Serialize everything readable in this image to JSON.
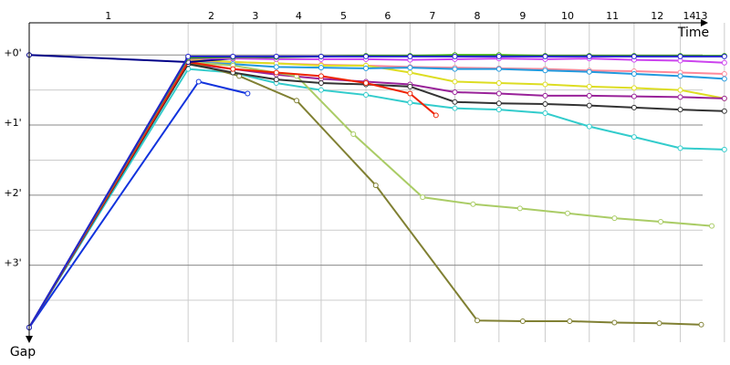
{
  "chart_data": {
    "type": "line",
    "x_label": "Time",
    "y_label": "Gap",
    "xlim": [
      0,
      10.01
    ],
    "ylim": [
      -0.46,
      4.1
    ],
    "xticks": [
      {
        "value": 1.13,
        "label": "1"
      },
      {
        "value": 2.6,
        "label": "2"
      },
      {
        "value": 3.23,
        "label": "3"
      },
      {
        "value": 3.85,
        "label": "4"
      },
      {
        "value": 4.49,
        "label": "5"
      },
      {
        "value": 5.12,
        "label": "6"
      },
      {
        "value": 5.76,
        "label": "7"
      },
      {
        "value": 6.4,
        "label": "8"
      },
      {
        "value": 7.05,
        "label": "9"
      },
      {
        "value": 7.69,
        "label": "10"
      },
      {
        "value": 8.33,
        "label": "11"
      },
      {
        "value": 8.97,
        "label": "12"
      },
      {
        "value": 9.43,
        "label": "14"
      },
      {
        "value": 9.6,
        "label": "13"
      }
    ],
    "xgrid": [
      2.27,
      2.91,
      3.53,
      4.17,
      4.81,
      5.44,
      6.08,
      6.71,
      7.37,
      8.0,
      8.64,
      9.3,
      9.93
    ],
    "yticks": [
      {
        "value": 0,
        "label": "+0'"
      },
      {
        "value": 1,
        "label": "+1'"
      },
      {
        "value": 2,
        "label": "+2'"
      },
      {
        "value": 3,
        "label": "+3'"
      }
    ],
    "ygrid": [
      0,
      0.5,
      1,
      1.5,
      2,
      2.5,
      3,
      3.5
    ],
    "series": [
      {
        "color": "#ff8899",
        "x": [
          0,
          2.27,
          2.91,
          3.53,
          4.17,
          4.81,
          5.44,
          6.08,
          6.71,
          7.37,
          8.0,
          8.64,
          9.3,
          9.93
        ],
        "values": [
          3.89,
          0.08,
          0.1,
          0.12,
          0.14,
          0.15,
          0.17,
          0.18,
          0.19,
          0.2,
          0.22,
          0.23,
          0.25,
          0.27
        ]
      },
      {
        "color": "#dddd22",
        "x": [
          0,
          2.27,
          2.91,
          3.53,
          4.17,
          4.81,
          5.44,
          6.08,
          6.71,
          7.37,
          8.0,
          8.64,
          9.3,
          9.93
        ],
        "values": [
          3.89,
          0.06,
          0.1,
          0.12,
          0.15,
          0.15,
          0.25,
          0.38,
          0.4,
          0.42,
          0.45,
          0.47,
          0.5,
          0.62
        ]
      },
      {
        "color": "#992299",
        "x": [
          0,
          2.27,
          2.91,
          3.53,
          4.17,
          4.81,
          5.44,
          6.08,
          6.71,
          7.37,
          8.0,
          8.64,
          9.3,
          9.93
        ],
        "values": [
          3.89,
          0.12,
          0.2,
          0.28,
          0.34,
          0.38,
          0.42,
          0.53,
          0.55,
          0.58,
          0.58,
          0.59,
          0.6,
          0.62
        ]
      },
      {
        "color": "#2299dd",
        "x": [
          0,
          2.27,
          2.91,
          3.53,
          4.17,
          4.81,
          5.44,
          6.08,
          6.71,
          7.37,
          8.0,
          8.64,
          9.3,
          9.93
        ],
        "values": [
          3.89,
          0.1,
          0.13,
          0.17,
          0.18,
          0.19,
          0.18,
          0.2,
          0.2,
          0.22,
          0.24,
          0.27,
          0.3,
          0.34
        ]
      },
      {
        "color": "#33cccc",
        "x": [
          0,
          2.27,
          2.91,
          3.53,
          4.17,
          4.81,
          5.44,
          6.08,
          6.71,
          7.37,
          8.0,
          8.64,
          9.3,
          9.93
        ],
        "values": [
          3.89,
          0.2,
          0.25,
          0.4,
          0.5,
          0.57,
          0.68,
          0.76,
          0.78,
          0.83,
          1.02,
          1.17,
          1.33,
          1.35
        ]
      },
      {
        "color": "#aacc66",
        "x": [
          0,
          2.27,
          2.91,
          3.82,
          4.63,
          5.62,
          6.34,
          7.01,
          7.69,
          8.36,
          9.02,
          9.75
        ],
        "values": [
          3.89,
          0.1,
          0.15,
          0.3,
          1.13,
          2.03,
          2.13,
          2.19,
          2.26,
          2.33,
          2.38,
          2.44
        ]
      },
      {
        "color": "#808033",
        "x": [
          0,
          2.27,
          3.0,
          3.82,
          4.95,
          6.4,
          7.05,
          7.72,
          8.36,
          9.0,
          9.6
        ],
        "values": [
          3.89,
          0.1,
          0.3,
          0.65,
          1.86,
          3.79,
          3.8,
          3.8,
          3.82,
          3.83,
          3.85
        ]
      },
      {
        "color": "#333333",
        "x": [
          0,
          2.27,
          2.91,
          3.53,
          4.17,
          4.81,
          5.44,
          6.08,
          6.71,
          7.37,
          8.0,
          8.64,
          9.3,
          9.93
        ],
        "values": [
          3.89,
          0.13,
          0.25,
          0.35,
          0.4,
          0.42,
          0.45,
          0.67,
          0.69,
          0.7,
          0.72,
          0.75,
          0.78,
          0.8
        ]
      },
      {
        "color": "#ee2200",
        "x": [
          0,
          2.27,
          2.91,
          3.53,
          4.17,
          4.81,
          5.44,
          5.81
        ],
        "values": [
          3.89,
          0.1,
          0.2,
          0.25,
          0.3,
          0.4,
          0.55,
          0.86
        ]
      },
      {
        "color": "#1133dd",
        "x": [
          0,
          2.42,
          3.12
        ],
        "values": [
          3.89,
          0.38,
          0.55
        ]
      },
      {
        "color": "#000088",
        "x": [
          0,
          2.27,
          2.91,
          3.53
        ],
        "values": [
          0,
          0.1,
          0.05,
          0.03
        ]
      },
      {
        "color": "#cc44ee",
        "x": [
          0,
          2.27,
          2.91,
          3.53,
          4.17,
          4.81,
          5.44,
          6.08,
          6.71,
          7.37,
          8.0,
          8.64,
          9.3,
          9.93
        ],
        "values": [
          3.89,
          0.05,
          0.05,
          0.06,
          0.06,
          0.06,
          0.07,
          0.06,
          0.05,
          0.06,
          0.05,
          0.07,
          0.08,
          0.11
        ]
      },
      {
        "color": "#33aa00",
        "x": [
          0,
          2.27,
          2.91,
          3.53,
          4.17,
          4.81,
          5.44,
          6.08,
          6.71,
          7.37,
          8.0,
          8.64,
          9.3,
          9.93
        ],
        "values": [
          3.89,
          0.04,
          0.03,
          0.03,
          0.02,
          0.01,
          0.01,
          0,
          0,
          0.01,
          0.01,
          0.01,
          0.01,
          0.01
        ]
      },
      {
        "color": "#2222cc",
        "x": [
          0,
          2.27,
          2.91,
          3.53,
          4.17,
          4.81,
          5.44,
          6.08,
          6.71,
          7.37,
          8.0,
          8.64,
          9.3,
          9.93
        ],
        "values": [
          3.89,
          0.02,
          0.02,
          0.02,
          0.02,
          0.02,
          0.02,
          0.02,
          0.02,
          0.02,
          0.02,
          0.02,
          0.02,
          0.02
        ]
      }
    ]
  }
}
